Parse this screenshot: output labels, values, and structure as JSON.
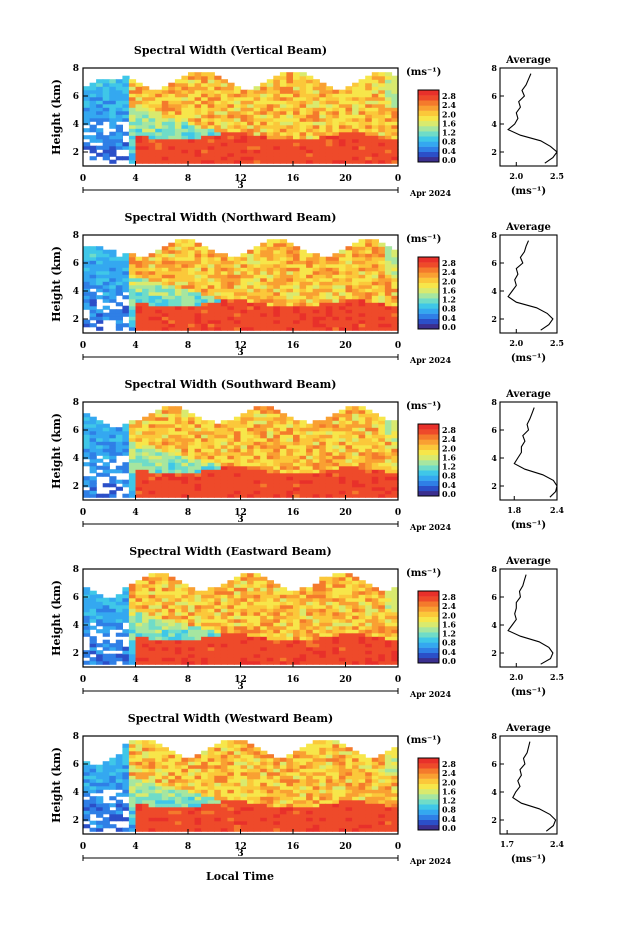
{
  "figure": {
    "bottom_label": "Local Time"
  },
  "colorbar": {
    "unit_label": "(ms⁻¹)",
    "colors": [
      "#3b2f8f",
      "#2b4fc8",
      "#2f7fe6",
      "#34a8f0",
      "#3fc7e8",
      "#6fdcc8",
      "#a6e6a0",
      "#d9ea6e",
      "#f7e64a",
      "#fbc83a",
      "#f9a032",
      "#f47a2c",
      "#ee4a2a",
      "#e8302a"
    ]
  },
  "chart_data": [
    {
      "type": "heatmap",
      "title": "Spectral Width (Vertical Beam)",
      "ylabel": "Height (km)",
      "xlim": [
        0,
        24
      ],
      "x_ticks": [
        "0",
        "4",
        "8",
        "12",
        "16",
        "20",
        "0"
      ],
      "date_tick": "3",
      "date_label": "Apr 2024",
      "ylim": [
        1,
        8
      ],
      "y_ticks": [
        "2",
        "4",
        "6",
        "8"
      ],
      "colorbar_ticks": [
        "2.8",
        "2.4",
        "2.0",
        "1.6",
        "1.2",
        "0.8",
        "0.4",
        "0.0"
      ],
      "profile": {
        "title": "Average",
        "xlabel": "(ms⁻¹)",
        "x_ticks": [
          "2.0",
          "2.5"
        ],
        "xlim": [
          1.8,
          2.5
        ],
        "y_ticks": [
          "2",
          "4",
          "6",
          "8"
        ],
        "height": [
          1.2,
          1.6,
          2.0,
          2.4,
          2.8,
          3.2,
          3.6,
          4.0,
          4.4,
          4.8,
          5.2,
          5.6,
          6.0,
          6.4,
          6.8,
          7.2,
          7.6
        ],
        "value": [
          2.35,
          2.45,
          2.5,
          2.42,
          2.3,
          2.05,
          1.9,
          1.98,
          2.02,
          2.0,
          2.05,
          2.03,
          2.1,
          2.07,
          2.12,
          2.15,
          2.18
        ]
      }
    },
    {
      "type": "heatmap",
      "title": "Spectral Width (Northward Beam)",
      "ylabel": "Height (km)",
      "xlim": [
        0,
        24
      ],
      "x_ticks": [
        "0",
        "4",
        "8",
        "12",
        "16",
        "20",
        "0"
      ],
      "date_tick": "3",
      "date_label": "Apr 2024",
      "ylim": [
        1,
        8
      ],
      "y_ticks": [
        "2",
        "4",
        "6",
        "8"
      ],
      "colorbar_ticks": [
        "2.8",
        "2.4",
        "2.0",
        "1.6",
        "1.2",
        "0.8",
        "0.4",
        "0.0"
      ],
      "profile": {
        "title": "Average",
        "xlabel": "(ms⁻¹)",
        "x_ticks": [
          "2.0",
          "2.5"
        ],
        "xlim": [
          1.8,
          2.5
        ],
        "y_ticks": [
          "2",
          "4",
          "6",
          "8"
        ],
        "height": [
          1.2,
          1.6,
          2.0,
          2.4,
          2.8,
          3.2,
          3.6,
          4.0,
          4.4,
          4.8,
          5.2,
          5.6,
          6.0,
          6.4,
          6.8,
          7.2,
          7.6
        ],
        "value": [
          2.3,
          2.4,
          2.45,
          2.38,
          2.25,
          2.0,
          1.9,
          1.95,
          2.0,
          1.98,
          2.02,
          2.0,
          2.08,
          2.05,
          2.1,
          2.12,
          2.15
        ]
      }
    },
    {
      "type": "heatmap",
      "title": "Spectral Width (Southward Beam)",
      "ylabel": "Height (km)",
      "xlim": [
        0,
        24
      ],
      "x_ticks": [
        "0",
        "4",
        "8",
        "12",
        "16",
        "20",
        "0"
      ],
      "date_tick": "3",
      "date_label": "Apr 2024",
      "ylim": [
        1,
        8
      ],
      "y_ticks": [
        "2",
        "4",
        "6",
        "8"
      ],
      "colorbar_ticks": [
        "2.8",
        "2.4",
        "2.0",
        "1.6",
        "1.2",
        "0.8",
        "0.4",
        "0.0"
      ],
      "profile": {
        "title": "Average",
        "xlabel": "(ms⁻¹)",
        "x_ticks": [
          "1.8",
          "2.4"
        ],
        "xlim": [
          1.6,
          2.4
        ],
        "y_ticks": [
          "2",
          "4",
          "6",
          "8"
        ],
        "height": [
          1.2,
          1.6,
          2.0,
          2.4,
          2.8,
          3.2,
          3.6,
          4.0,
          4.4,
          4.8,
          5.2,
          5.6,
          6.0,
          6.4,
          6.8,
          7.2,
          7.6
        ],
        "value": [
          2.3,
          2.38,
          2.4,
          2.35,
          2.2,
          1.95,
          1.8,
          1.85,
          1.9,
          1.9,
          1.95,
          1.92,
          2.0,
          1.98,
          2.02,
          2.05,
          2.08
        ]
      }
    },
    {
      "type": "heatmap",
      "title": "Spectral Width (Eastward Beam)",
      "ylabel": "Height (km)",
      "xlim": [
        0,
        24
      ],
      "x_ticks": [
        "0",
        "4",
        "8",
        "12",
        "16",
        "20",
        "0"
      ],
      "date_tick": "3",
      "date_label": "Apr 2024",
      "ylim": [
        1,
        8
      ],
      "y_ticks": [
        "2",
        "4",
        "6",
        "8"
      ],
      "colorbar_ticks": [
        "2.8",
        "2.4",
        "2.0",
        "1.6",
        "1.2",
        "0.8",
        "0.4",
        "0.0"
      ],
      "profile": {
        "title": "Average",
        "xlabel": "(ms⁻¹)",
        "x_ticks": [
          "2.0",
          "2.5"
        ],
        "xlim": [
          1.8,
          2.5
        ],
        "y_ticks": [
          "2",
          "4",
          "6",
          "8"
        ],
        "height": [
          1.2,
          1.6,
          2.0,
          2.4,
          2.8,
          3.2,
          3.6,
          4.0,
          4.4,
          4.8,
          5.2,
          5.6,
          6.0,
          6.4,
          6.8,
          7.2,
          7.6
        ],
        "value": [
          2.3,
          2.42,
          2.45,
          2.4,
          2.28,
          2.05,
          1.9,
          1.95,
          2.0,
          1.98,
          2.0,
          2.0,
          2.05,
          2.04,
          2.08,
          2.1,
          2.12
        ]
      }
    },
    {
      "type": "heatmap",
      "title": "Spectral Width (Westward Beam)",
      "ylabel": "Height (km)",
      "xlim": [
        0,
        24
      ],
      "x_ticks": [
        "0",
        "4",
        "8",
        "12",
        "16",
        "20",
        "0"
      ],
      "date_tick": "3",
      "date_label": "Apr 2024",
      "ylim": [
        1,
        8
      ],
      "y_ticks": [
        "2",
        "4",
        "6",
        "8"
      ],
      "colorbar_ticks": [
        "2.8",
        "2.4",
        "2.0",
        "1.6",
        "1.2",
        "0.8",
        "0.4",
        "0.0"
      ],
      "profile": {
        "title": "Average",
        "xlabel": "(ms⁻¹)",
        "x_ticks": [
          "1.7",
          "2.4"
        ],
        "xlim": [
          1.6,
          2.4
        ],
        "y_ticks": [
          "2",
          "4",
          "6",
          "8"
        ],
        "height": [
          1.2,
          1.6,
          2.0,
          2.4,
          2.8,
          3.2,
          3.6,
          4.0,
          4.4,
          4.8,
          5.2,
          5.6,
          6.0,
          6.4,
          6.8,
          7.2,
          7.6
        ],
        "value": [
          2.25,
          2.35,
          2.38,
          2.3,
          2.15,
          1.9,
          1.78,
          1.82,
          1.88,
          1.85,
          1.9,
          1.88,
          1.95,
          1.93,
          1.98,
          2.0,
          2.02
        ]
      }
    }
  ]
}
